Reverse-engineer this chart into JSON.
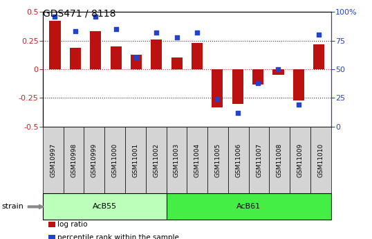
{
  "title": "GDS471 / 8118",
  "samples": [
    "GSM10997",
    "GSM10998",
    "GSM10999",
    "GSM11000",
    "GSM11001",
    "GSM11002",
    "GSM11003",
    "GSM11004",
    "GSM11005",
    "GSM11006",
    "GSM11007",
    "GSM11008",
    "GSM11009",
    "GSM11010"
  ],
  "log_ratio": [
    0.42,
    0.19,
    0.33,
    0.2,
    0.13,
    0.26,
    0.1,
    0.23,
    -0.33,
    -0.3,
    -0.13,
    -0.05,
    -0.27,
    0.22
  ],
  "percentile_rank": [
    96,
    83,
    96,
    85,
    60,
    82,
    78,
    82,
    24,
    12,
    38,
    50,
    19,
    80
  ],
  "groups": [
    {
      "label": "AcB55",
      "start": 0,
      "end": 5,
      "color": "#bbffbb"
    },
    {
      "label": "AcB61",
      "start": 6,
      "end": 13,
      "color": "#44ee44"
    }
  ],
  "bar_color": "#bb1111",
  "dot_color": "#2244cc",
  "ylim_left": [
    -0.5,
    0.5
  ],
  "ylim_right": [
    0,
    100
  ],
  "yticks_left": [
    -0.5,
    -0.25,
    0,
    0.25,
    0.5
  ],
  "yticks_right": [
    0,
    25,
    50,
    75,
    100
  ],
  "zero_line_color": "#cc2222",
  "dotted_line_color": "#333333",
  "bg_color": "#ffffff",
  "plot_bg": "#ffffff",
  "strain_label": "strain",
  "legend_items": [
    {
      "label": "log ratio",
      "color": "#bb1111"
    },
    {
      "label": "percentile rank within the sample",
      "color": "#2244cc"
    }
  ],
  "bar_width": 0.55,
  "left_color": "#cc2222",
  "right_color": "#2244cc",
  "title_fontsize": 10,
  "tick_fontsize": 8,
  "label_fontsize": 8
}
